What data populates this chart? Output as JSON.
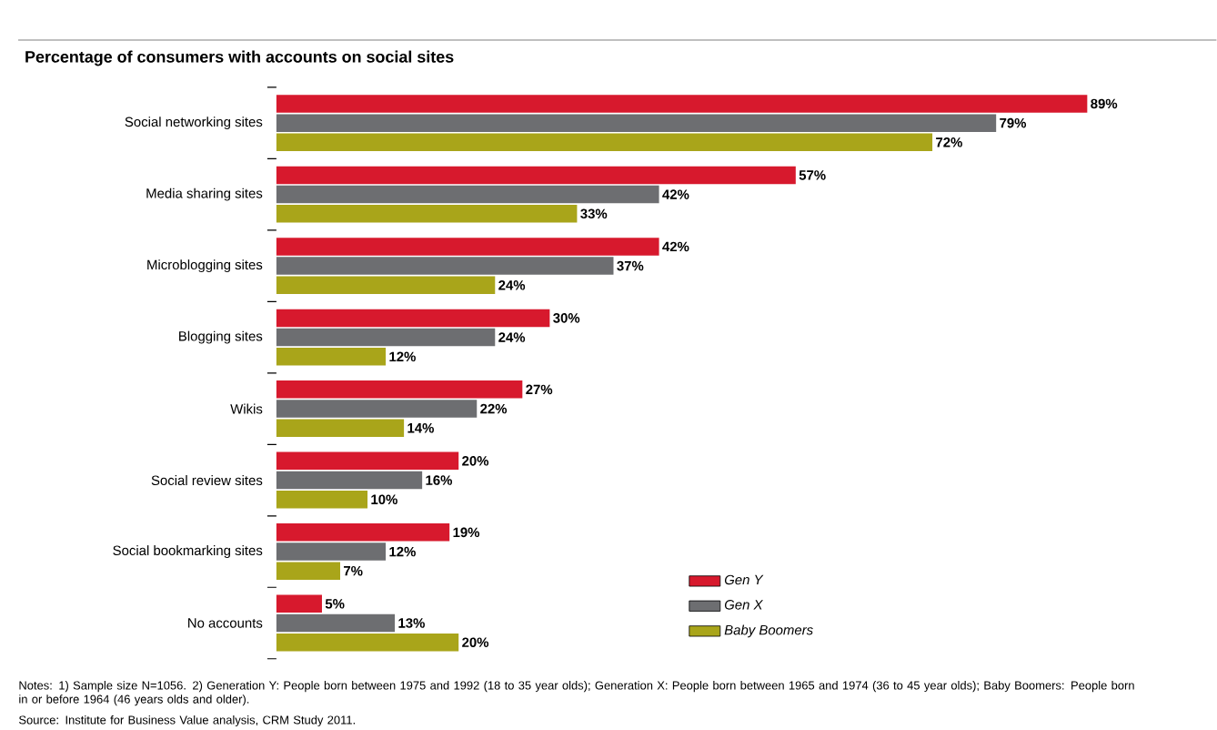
{
  "chart_data": {
    "type": "bar",
    "orientation": "horizontal",
    "title": "Percentage of consumers with accounts on social sites",
    "categories": [
      "Social networking sites",
      "Media sharing sites",
      "Microblogging sites",
      "Blogging sites",
      "Wikis",
      "Social review sites",
      "Social bookmarking sites",
      "No accounts"
    ],
    "series": [
      {
        "name": "Gen Y",
        "color": "#d7192d",
        "values": [
          89,
          57,
          42,
          30,
          27,
          20,
          19,
          5
        ],
        "value_labels": [
          "89%",
          "57%",
          "42%",
          "30%",
          "27%",
          "20%",
          "19%",
          "5%"
        ]
      },
      {
        "name": "Gen X",
        "color": "#6d6e71",
        "values": [
          79,
          42,
          37,
          24,
          22,
          16,
          12,
          13
        ],
        "value_labels": [
          "79%",
          "42%",
          "37%",
          "24%",
          "22%",
          "16%",
          "12%",
          "13%"
        ]
      },
      {
        "name": "Baby Boomers",
        "color": "#a9a51a",
        "values": [
          72,
          33,
          24,
          12,
          14,
          10,
          7,
          20
        ],
        "value_labels": [
          "72%",
          "33%",
          "24%",
          "12%",
          "14%",
          "10%",
          "7%",
          "20%"
        ]
      }
    ],
    "legend": "bottom right",
    "annotations": [
      "Notes: 1) Sample size N=1056. 2) Generation Y: People born between 1975 and 1992 (18 to 35 year olds); Generation X: People born between 1965 and 1974 (36 to 45 year olds); Baby Boomers: People born in or before 1964 (46 years olds and older).",
      "Source: Institute for Business Value analysis, CRM Study 2011."
    ]
  }
}
